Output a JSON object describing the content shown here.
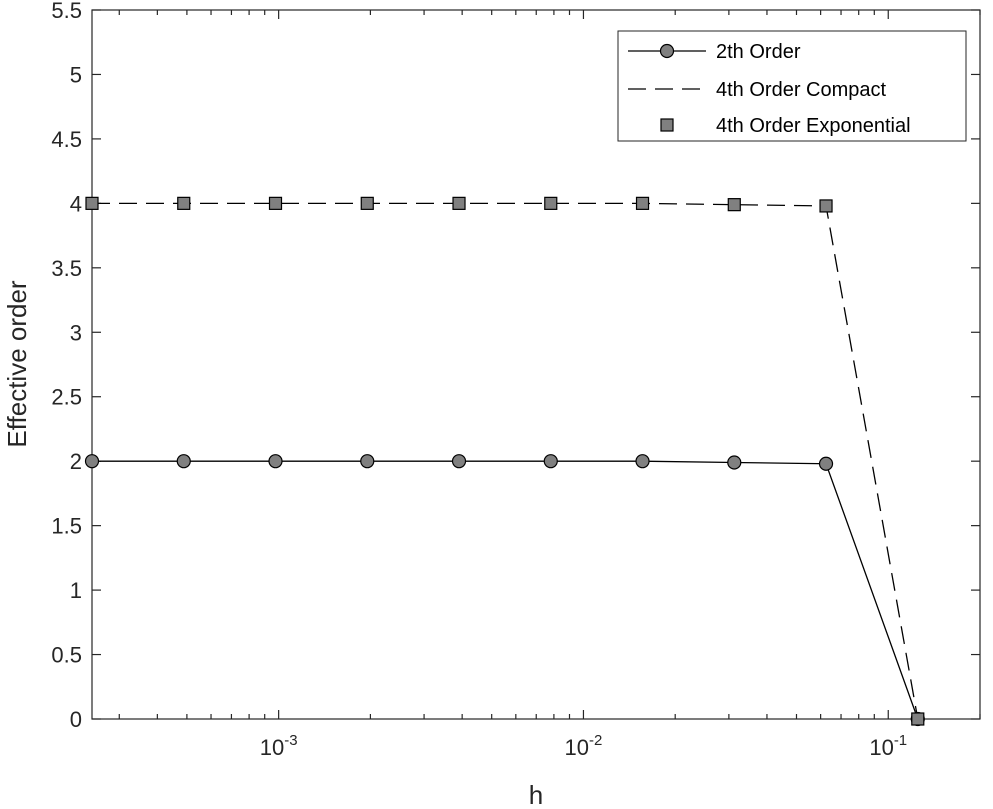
{
  "chart_data": {
    "type": "line",
    "title": "",
    "xlabel": "h",
    "ylabel": "Effective order",
    "xscale": "log",
    "xlim": [
      0.000244140625,
      0.2
    ],
    "ylim": [
      0,
      5.5
    ],
    "yticks": [
      "0",
      "0.5",
      "1",
      "1.5",
      "2",
      "2.5",
      "3",
      "3.5",
      "4",
      "4.5",
      "5",
      "5.5"
    ],
    "xticks": [
      {
        "value": 0.001,
        "base": "10",
        "exp": "-3"
      },
      {
        "value": 0.01,
        "base": "10",
        "exp": "-2"
      },
      {
        "value": 0.1,
        "base": "10",
        "exp": "-1"
      }
    ],
    "grid": false,
    "legend_position": "top-right",
    "x": [
      0.000244140625,
      0.00048828125,
      0.0009765625,
      0.001953125,
      0.00390625,
      0.0078125,
      0.015625,
      0.03125,
      0.0625,
      0.125
    ],
    "series": [
      {
        "name": "2th Order",
        "style": "solid-circle",
        "values": [
          2.0,
          2.0,
          2.0,
          2.0,
          2.0,
          2.0,
          2.0,
          1.99,
          1.98,
          0
        ]
      },
      {
        "name": "4th Order Compact",
        "style": "dashed",
        "values": [
          4.0,
          4.0,
          4.0,
          4.0,
          4.0,
          4.0,
          4.0,
          3.99,
          3.98,
          0
        ]
      },
      {
        "name": "4th Order Exponential",
        "style": "square-markers",
        "values": [
          4.0,
          4.0,
          4.0,
          4.0,
          4.0,
          4.0,
          4.0,
          3.99,
          3.98,
          0
        ]
      }
    ],
    "colors": {
      "marker_fill": "#808080",
      "line": "#000000",
      "axis": "#262626"
    }
  }
}
